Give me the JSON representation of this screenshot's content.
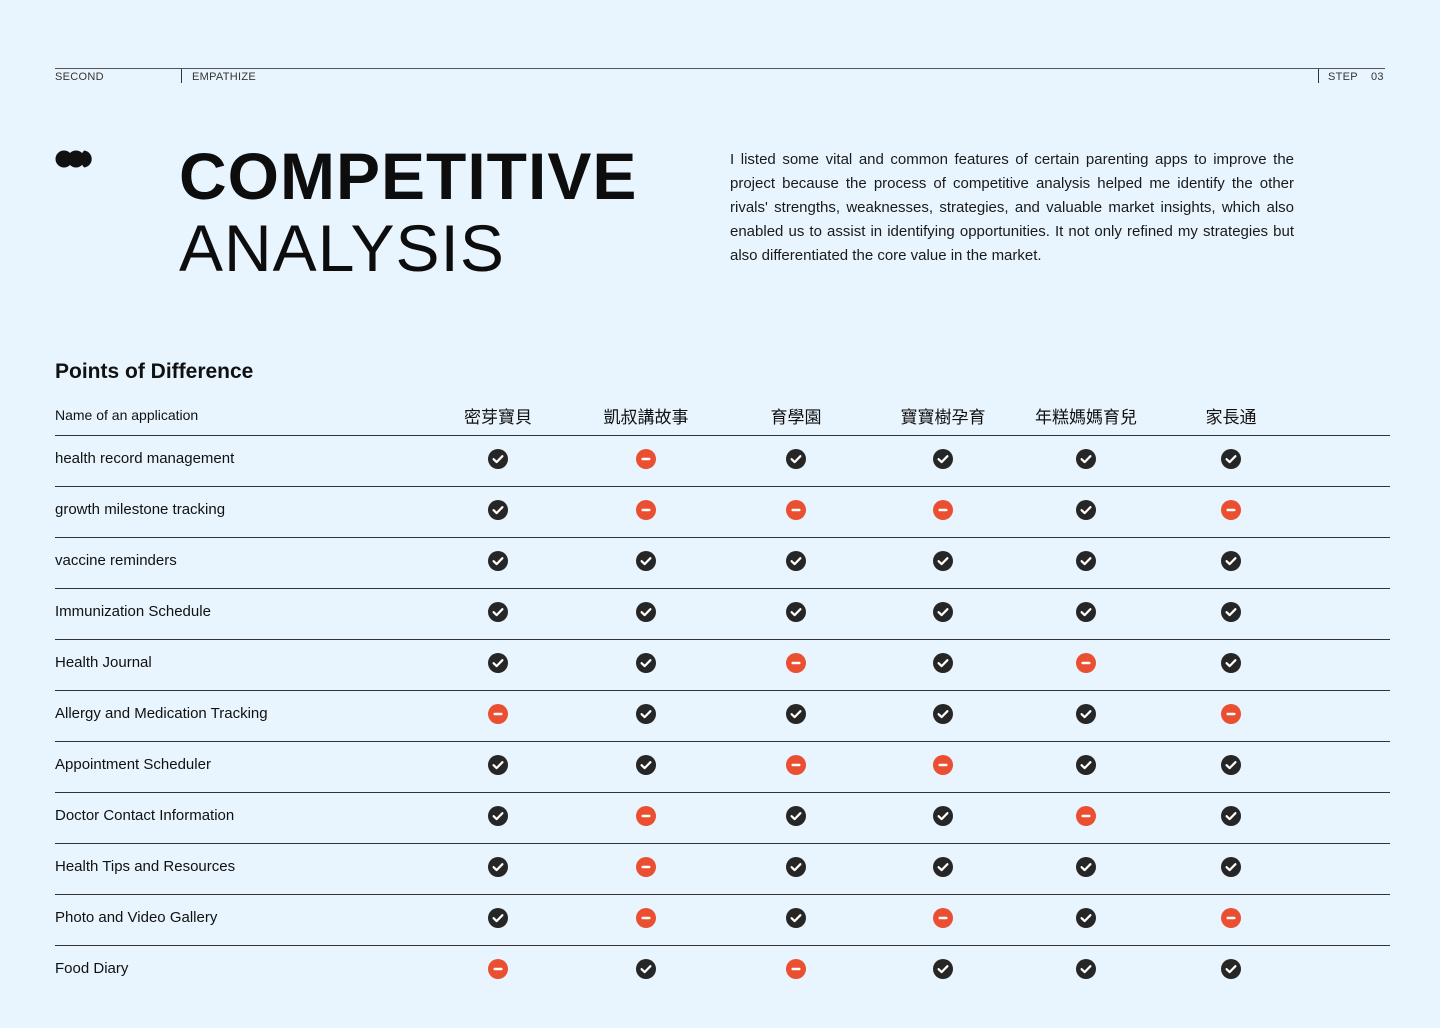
{
  "header": {
    "left_label": "SECOND",
    "mid_label": "EMPATHIZE",
    "step_label": "STEP",
    "step_number": "03"
  },
  "brand": {
    "logo_icon": "three-dots-logo-icon"
  },
  "title": {
    "line1": "COMPETITIVE",
    "line2": "ANALYSIS"
  },
  "intro": "I listed some vital and common features of certain parenting apps to improve the project because the process of competitive analysis helped me identify the other rivals' strengths, weaknesses, strategies, and valuable market insights, which also enabled us to assist in identifying opportunities. It not only refined my strategies but also differentiated the core value in the market.",
  "section": {
    "heading": "Points of Difference"
  },
  "colors": {
    "background": "#e9f5fe",
    "check": "#262626",
    "minus": "#ea4f31"
  },
  "table": {
    "name_header": "Name of an application",
    "apps": [
      "密芽寶貝",
      "凱叔講故事",
      "育學園",
      "寶寶樹孕育",
      "年糕媽媽育兒",
      "家長通"
    ],
    "legend": {
      "yes": "check-circle-icon",
      "no": "minus-circle-icon"
    },
    "rows": [
      {
        "feature": "health record management",
        "values": [
          "yes",
          "no",
          "yes",
          "yes",
          "yes",
          "yes"
        ]
      },
      {
        "feature": "growth milestone tracking",
        "values": [
          "yes",
          "no",
          "no",
          "no",
          "yes",
          "no"
        ]
      },
      {
        "feature": "vaccine reminders",
        "values": [
          "yes",
          "yes",
          "yes",
          "yes",
          "yes",
          "yes"
        ]
      },
      {
        "feature": "Immunization Schedule",
        "values": [
          "yes",
          "yes",
          "yes",
          "yes",
          "yes",
          "yes"
        ]
      },
      {
        "feature": "Health Journal",
        "values": [
          "yes",
          "yes",
          "no",
          "yes",
          "no",
          "yes"
        ]
      },
      {
        "feature": "Allergy and Medication Tracking",
        "values": [
          "no",
          "yes",
          "yes",
          "yes",
          "yes",
          "no"
        ]
      },
      {
        "feature": "Appointment Scheduler",
        "values": [
          "yes",
          "yes",
          "no",
          "no",
          "yes",
          "yes"
        ]
      },
      {
        "feature": "Doctor Contact Information",
        "values": [
          "yes",
          "no",
          "yes",
          "yes",
          "no",
          "yes"
        ]
      },
      {
        "feature": "Health Tips and Resources",
        "values": [
          "yes",
          "no",
          "yes",
          "yes",
          "yes",
          "yes"
        ]
      },
      {
        "feature": "Photo and Video Gallery",
        "values": [
          "yes",
          "no",
          "yes",
          "no",
          "yes",
          "no"
        ]
      },
      {
        "feature": "Food Diary",
        "values": [
          "no",
          "yes",
          "no",
          "yes",
          "yes",
          "yes"
        ]
      }
    ]
  }
}
